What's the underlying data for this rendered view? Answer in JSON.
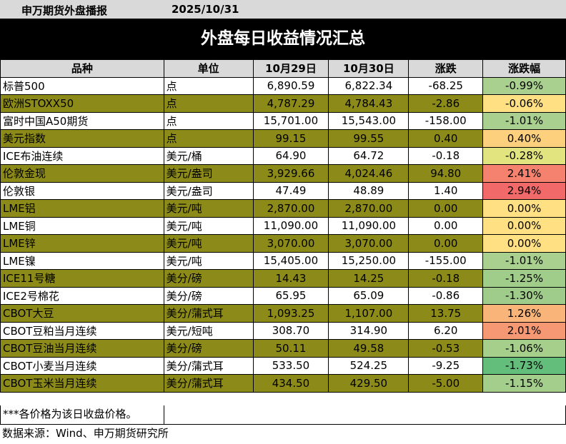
{
  "header": {
    "brand": "申万期货外盘播报",
    "date": "2025/10/31"
  },
  "title": "外盘每日收益情况汇总",
  "columns": [
    "品种",
    "单位",
    "10月29日",
    "10月30日",
    "涨跌",
    "涨跌幅"
  ],
  "rows": [
    {
      "name": "标普500",
      "unit": "点",
      "d1": "6,890.59",
      "d2": "6,822.34",
      "chg": "-68.25",
      "pct": "-0.99%",
      "shade": "white",
      "pct_color": "#a9d08e"
    },
    {
      "name": "欧洲STOXX50",
      "unit": "点",
      "d1": "4,787.29",
      "d2": "4,784.43",
      "chg": "-2.86",
      "pct": "-0.06%",
      "shade": "olive",
      "pct_color": "#ffe082"
    },
    {
      "name": "富时中国A50期货",
      "unit": "点",
      "d1": "15,701.00",
      "d2": "15,543.00",
      "chg": "-158.00",
      "pct": "-1.01%",
      "shade": "white",
      "pct_color": "#a9d08e"
    },
    {
      "name": "美元指数",
      "unit": "点",
      "d1": "99.15",
      "d2": "99.55",
      "chg": "0.40",
      "pct": "0.40%",
      "shade": "olive",
      "pct_color": "#fcd07d"
    },
    {
      "name": "ICE布油连续",
      "unit": "美元/桶",
      "d1": "64.90",
      "d2": "64.72",
      "chg": "-0.18",
      "pct": "-0.28%",
      "shade": "white",
      "pct_color": "#e2e47f"
    },
    {
      "name": "伦敦金现",
      "unit": "美元/盎司",
      "d1": "3,929.66",
      "d2": "4,024.46",
      "chg": "94.80",
      "pct": "2.41%",
      "shade": "olive",
      "pct_color": "#f4826f"
    },
    {
      "name": "伦敦银",
      "unit": "美元/盎司",
      "d1": "47.49",
      "d2": "48.89",
      "chg": "1.40",
      "pct": "2.94%",
      "shade": "white",
      "pct_color": "#f2696a"
    },
    {
      "name": "LME铝",
      "unit": "美元/吨",
      "d1": "2,870.00",
      "d2": "2,870.00",
      "chg": "0.00",
      "pct": "0.00%",
      "shade": "olive",
      "pct_color": "#ffe082"
    },
    {
      "name": "LME铜",
      "unit": "美元/吨",
      "d1": "11,090.00",
      "d2": "11,090.00",
      "chg": "0.00",
      "pct": "0.00%",
      "shade": "white",
      "pct_color": "#ffe082"
    },
    {
      "name": "LME锌",
      "unit": "美元/吨",
      "d1": "3,070.00",
      "d2": "3,070.00",
      "chg": "0.00",
      "pct": "0.00%",
      "shade": "olive",
      "pct_color": "#ffe082"
    },
    {
      "name": "LME镍",
      "unit": "美元/吨",
      "d1": "15,405.00",
      "d2": "15,250.00",
      "chg": "-155.00",
      "pct": "-1.01%",
      "shade": "white",
      "pct_color": "#a9d08e"
    },
    {
      "name": "ICE11号糖",
      "unit": "美分/磅",
      "d1": "14.43",
      "d2": "14.25",
      "chg": "-0.18",
      "pct": "-1.25%",
      "shade": "olive",
      "pct_color": "#a1cd8b"
    },
    {
      "name": "ICE2号棉花",
      "unit": "美分/磅",
      "d1": "65.95",
      "d2": "65.09",
      "chg": "-0.86",
      "pct": "-1.30%",
      "shade": "white",
      "pct_color": "#9fcc8a"
    },
    {
      "name": "CBOT大豆",
      "unit": "美分/蒲式耳",
      "d1": "1,093.25",
      "d2": "1,107.00",
      "chg": "13.75",
      "pct": "1.26%",
      "shade": "olive",
      "pct_color": "#f9b47a"
    },
    {
      "name": "CBOT豆粕当月连续",
      "unit": "美元/短吨",
      "d1": "308.70",
      "d2": "314.90",
      "chg": "6.20",
      "pct": "2.01%",
      "shade": "white",
      "pct_color": "#f69874"
    },
    {
      "name": "CBOT豆油当月连续",
      "unit": "美分/磅",
      "d1": "50.11",
      "d2": "49.58",
      "chg": "-0.53",
      "pct": "-1.06%",
      "shade": "olive",
      "pct_color": "#a6cf8c"
    },
    {
      "name": "CBOT小麦当月连续",
      "unit": "美分/蒲式耳",
      "d1": "533.50",
      "d2": "524.25",
      "chg": "-9.25",
      "pct": "-1.73%",
      "shade": "white",
      "pct_color": "#63be7b"
    },
    {
      "name": "CBOT玉米当月连续",
      "unit": "美分/蒲式耳",
      "d1": "434.50",
      "d2": "429.50",
      "chg": "-5.00",
      "pct": "-1.15%",
      "shade": "olive",
      "pct_color": "#a4ce8b"
    }
  ],
  "note": "***各价格为该日收盘价格。",
  "source": "数据来源：Wind、申万期货研究所"
}
